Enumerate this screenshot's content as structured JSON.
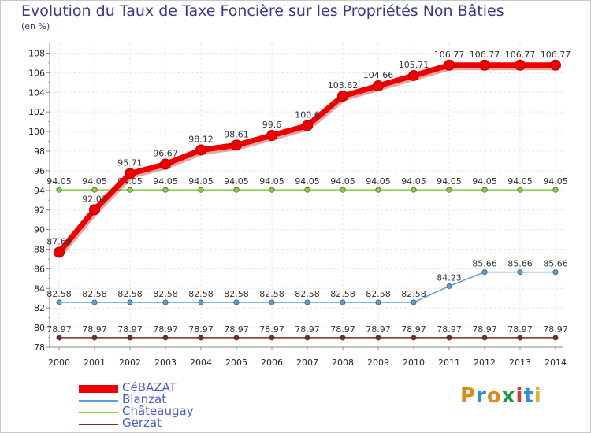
{
  "header": {
    "title": "Evolution du Taux de Taxe Foncière sur les Propriétés Non Bâties",
    "unit": "(en %)"
  },
  "logo": {
    "text": "Proxiti",
    "colors": [
      "#e08a1e",
      "#2f8fd6",
      "#e08a1e",
      "#1e9a4a",
      "#d83a2a",
      "#2f8fd6",
      "#e0b020"
    ]
  },
  "chart_data": {
    "type": "line",
    "title": "Evolution du Taux de Taxe Foncière sur les Propriétés Non Bâties",
    "ylabel": "(en %)",
    "xlabel": "",
    "ylim": [
      78,
      109
    ],
    "yticks": [
      78,
      80,
      82,
      84,
      86,
      88,
      90,
      92,
      94,
      96,
      98,
      100,
      102,
      104,
      106,
      108
    ],
    "categories": [
      "2000",
      "2001",
      "2002",
      "2003",
      "2004",
      "2005",
      "2006",
      "2007",
      "2008",
      "2009",
      "2010",
      "2011",
      "2012",
      "2013",
      "2014"
    ],
    "grid": true,
    "legend_position": "bottom-left",
    "series": [
      {
        "name": "CéBAZAT",
        "color": "#ee0000",
        "values": [
          87.68,
          92.03,
          95.71,
          96.67,
          98.12,
          98.61,
          99.6,
          100.6,
          103.62,
          104.66,
          105.71,
          106.77,
          106.77,
          106.77,
          106.77
        ],
        "labels": [
          "87.68",
          "92.03",
          "95.71",
          "96.67",
          "98.12",
          "98.61",
          "99.6",
          "100.6",
          "103.62",
          "104.66",
          "105.71",
          "106.77",
          "106.77",
          "106.77",
          "106.77"
        ]
      },
      {
        "name": "Blanzat",
        "color": "#5aa0d8",
        "values": [
          82.58,
          82.58,
          82.58,
          82.58,
          82.58,
          82.58,
          82.58,
          82.58,
          82.58,
          82.58,
          82.58,
          84.23,
          85.66,
          85.66,
          85.66
        ],
        "labels": [
          "82.58",
          "82.58",
          "82.58",
          "82.58",
          "82.58",
          "82.58",
          "82.58",
          "82.58",
          "82.58",
          "82.58",
          "82.58",
          "84.23",
          "85.66",
          "85.66",
          "85.66"
        ]
      },
      {
        "name": "Châteaugay",
        "color": "#88cc44",
        "values": [
          94.05,
          94.05,
          94.05,
          94.05,
          94.05,
          94.05,
          94.05,
          94.05,
          94.05,
          94.05,
          94.05,
          94.05,
          94.05,
          94.05,
          94.05
        ],
        "labels": [
          "94.05",
          "94.05",
          "94.05",
          "94.05",
          "94.05",
          "94.05",
          "94.05",
          "94.05",
          "94.05",
          "94.05",
          "94.05",
          "94.05",
          "94.05",
          "94.05",
          "94.05"
        ]
      },
      {
        "name": "Gerzat",
        "color": "#7a2a2a",
        "values": [
          78.97,
          78.97,
          78.97,
          78.97,
          78.97,
          78.97,
          78.97,
          78.97,
          78.97,
          78.97,
          78.97,
          78.97,
          78.97,
          78.97,
          78.97
        ],
        "labels": [
          "78.97",
          "78.97",
          "78.97",
          "78.97",
          "78.97",
          "78.97",
          "78.97",
          "78.97",
          "78.97",
          "78.97",
          "78.97",
          "78.97",
          "78.97",
          "78.97",
          "78.97"
        ]
      }
    ]
  }
}
